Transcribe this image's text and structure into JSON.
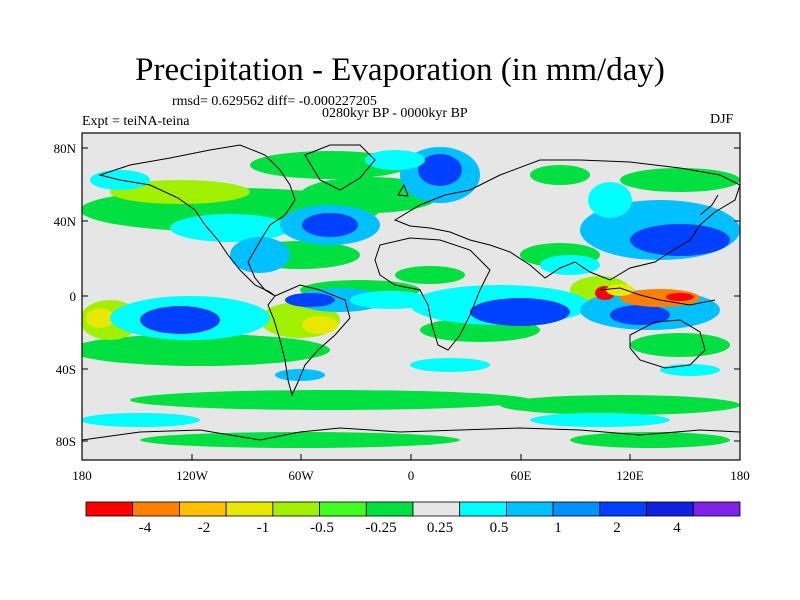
{
  "title": "Precipitation - Evaporation (in mm/day)",
  "stats": "rmsd= 0.629562 diff= -0.000227205",
  "period": "0280kyr BP - 0000kyr BP",
  "experiment": "Expt = teiNA-teina",
  "season": "DJF",
  "lat_ticks": [
    "80N",
    "40N",
    "0",
    "40S",
    "80S"
  ],
  "lon_ticks": [
    "180",
    "120W",
    "60W",
    "0",
    "60E",
    "120E",
    "180"
  ],
  "colorbar": {
    "colors": [
      "#ff0000",
      "#ff8000",
      "#ffc000",
      "#e8e800",
      "#a0f000",
      "#40ff20",
      "#00e040",
      "#e6e6e6",
      "#00ffff",
      "#00c0ff",
      "#0090ff",
      "#0040ff",
      "#1020e0",
      "#8020e8"
    ],
    "labels": [
      "-4",
      "-2",
      "-1",
      "-0.5",
      "-0.25",
      "0.25",
      "0.5",
      "1",
      "2",
      "4"
    ]
  },
  "map_colors": {
    "background": "#e6e6e6",
    "coast": "#000000",
    "green": "#00e040",
    "lime": "#a0f000",
    "yellow": "#e8e800",
    "cyan": "#00ffff",
    "sky": "#00c0ff",
    "blue": "#0040ff",
    "navy": "#1020e0",
    "orange": "#ff8000",
    "red": "#ff0000"
  }
}
